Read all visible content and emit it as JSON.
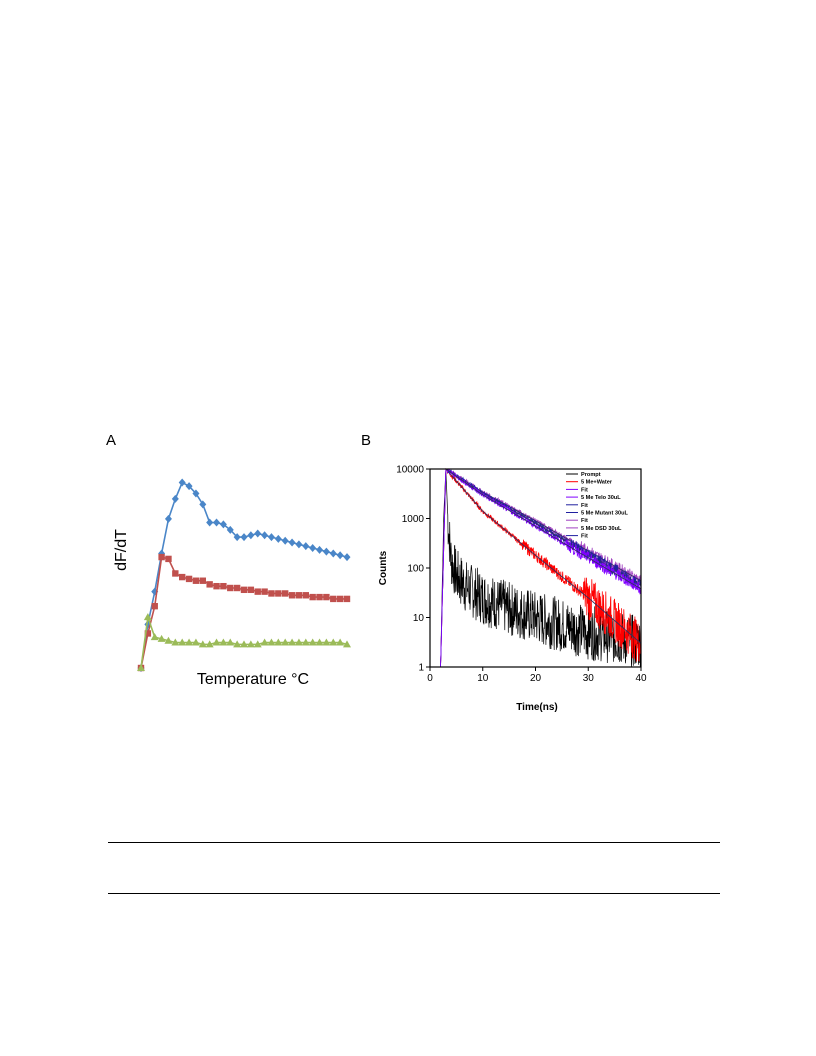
{
  "panel_labels": {
    "a": "A",
    "b": "B"
  },
  "colors": {
    "blue": "#4a86c8",
    "red": "#c0504d",
    "green": "#9bbb59",
    "prompt": "#000000",
    "water": "#ff0000",
    "telo": "#8000ff",
    "mutant": "#2020a0",
    "dsd": "#a040c0"
  },
  "chart_data": [
    {
      "type": "line",
      "title": "",
      "xlabel": "Temperature °C",
      "ylabel": "dF/dT",
      "x": [
        0,
        1,
        2,
        3,
        4,
        5,
        6,
        7,
        8,
        9,
        10,
        11,
        12,
        13,
        14,
        15,
        16,
        17,
        18,
        19,
        20,
        21,
        22,
        23,
        24,
        25,
        26,
        27,
        28,
        29,
        30
      ],
      "ylim": [
        0,
        110
      ],
      "grid": false,
      "legend": "none",
      "series": [
        {
          "color": "blue",
          "marker": "diamond",
          "values": [
            0,
            24,
            42,
            63,
            82,
            93,
            102,
            100,
            96,
            90,
            80,
            80,
            79,
            76,
            72,
            72,
            73,
            74,
            73,
            72,
            71,
            70,
            69,
            68,
            67,
            66,
            65,
            64,
            63,
            62,
            61
          ]
        },
        {
          "color": "red",
          "marker": "square",
          "values": [
            0,
            19,
            34,
            61,
            60,
            52,
            50,
            49,
            48,
            48,
            46,
            45,
            45,
            44,
            44,
            43,
            43,
            42,
            42,
            41,
            41,
            41,
            40,
            40,
            40,
            39,
            39,
            39,
            38,
            38,
            38
          ]
        },
        {
          "color": "green",
          "marker": "triangle",
          "values": [
            0,
            28,
            17,
            16,
            15,
            14,
            14,
            14,
            14,
            13,
            13,
            14,
            14,
            14,
            13,
            13,
            13,
            13,
            14,
            14,
            14,
            14,
            14,
            14,
            14,
            14,
            14,
            14,
            14,
            14,
            13
          ]
        }
      ]
    },
    {
      "type": "line",
      "title": "",
      "xlabel": "Time(ns)",
      "ylabel": "Counts",
      "xlim": [
        0,
        40
      ],
      "ylim": [
        1,
        10000
      ],
      "yscale": "log",
      "x_ticks": [
        0,
        10,
        20,
        30,
        40
      ],
      "x_tick_labels": [
        "0",
        "10",
        "20",
        "30",
        "40"
      ],
      "y_ticks": [
        1,
        10,
        100,
        1000,
        10000
      ],
      "y_tick_labels": [
        "1",
        "10",
        "100",
        "1000",
        "10000"
      ],
      "legend_position": "top-right",
      "legend": [
        "Prompt",
        "5 Me+Water",
        "Fit",
        "5 Me Telo 30uL",
        "Fit",
        "5 Me Mutant 30uL",
        "Fit",
        "5 Me DSD 30uL",
        "Fit"
      ],
      "series": [
        {
          "name": "Prompt",
          "color": "prompt",
          "points": [
            [
              2,
              1
            ],
            [
              2.6,
              1000
            ],
            [
              3.0,
              10000
            ],
            [
              3.4,
              900
            ],
            [
              4,
              150
            ],
            [
              5,
              70
            ],
            [
              7,
              40
            ],
            [
              10,
              25
            ],
            [
              15,
              15
            ],
            [
              20,
              10
            ],
            [
              25,
              7
            ],
            [
              30,
              5
            ],
            [
              35,
              4
            ],
            [
              40,
              3
            ]
          ]
        },
        {
          "name": "5 Me+Water",
          "color": "water",
          "points": [
            [
              2,
              1
            ],
            [
              3.0,
              10000
            ],
            [
              10,
              1400
            ],
            [
              20,
              180
            ],
            [
              30,
              25
            ],
            [
              40,
              3
            ]
          ]
        },
        {
          "name": "5 Me Telo 30uL",
          "color": "telo",
          "points": [
            [
              2,
              1
            ],
            [
              3.0,
              10000
            ],
            [
              10,
              3000
            ],
            [
              20,
              700
            ],
            [
              30,
              160
            ],
            [
              40,
              38
            ]
          ]
        },
        {
          "name": "5 Me Mutant 30uL",
          "color": "mutant",
          "points": [
            [
              2,
              1
            ],
            [
              3.0,
              10000
            ],
            [
              10,
              3200
            ],
            [
              20,
              800
            ],
            [
              30,
              190
            ],
            [
              40,
              45
            ]
          ]
        },
        {
          "name": "5 Me DSD 30uL",
          "color": "dsd",
          "points": [
            [
              2,
              1
            ],
            [
              3.0,
              10000
            ],
            [
              10,
              3400
            ],
            [
              20,
              900
            ],
            [
              30,
              220
            ],
            [
              40,
              55
            ]
          ]
        }
      ]
    }
  ]
}
